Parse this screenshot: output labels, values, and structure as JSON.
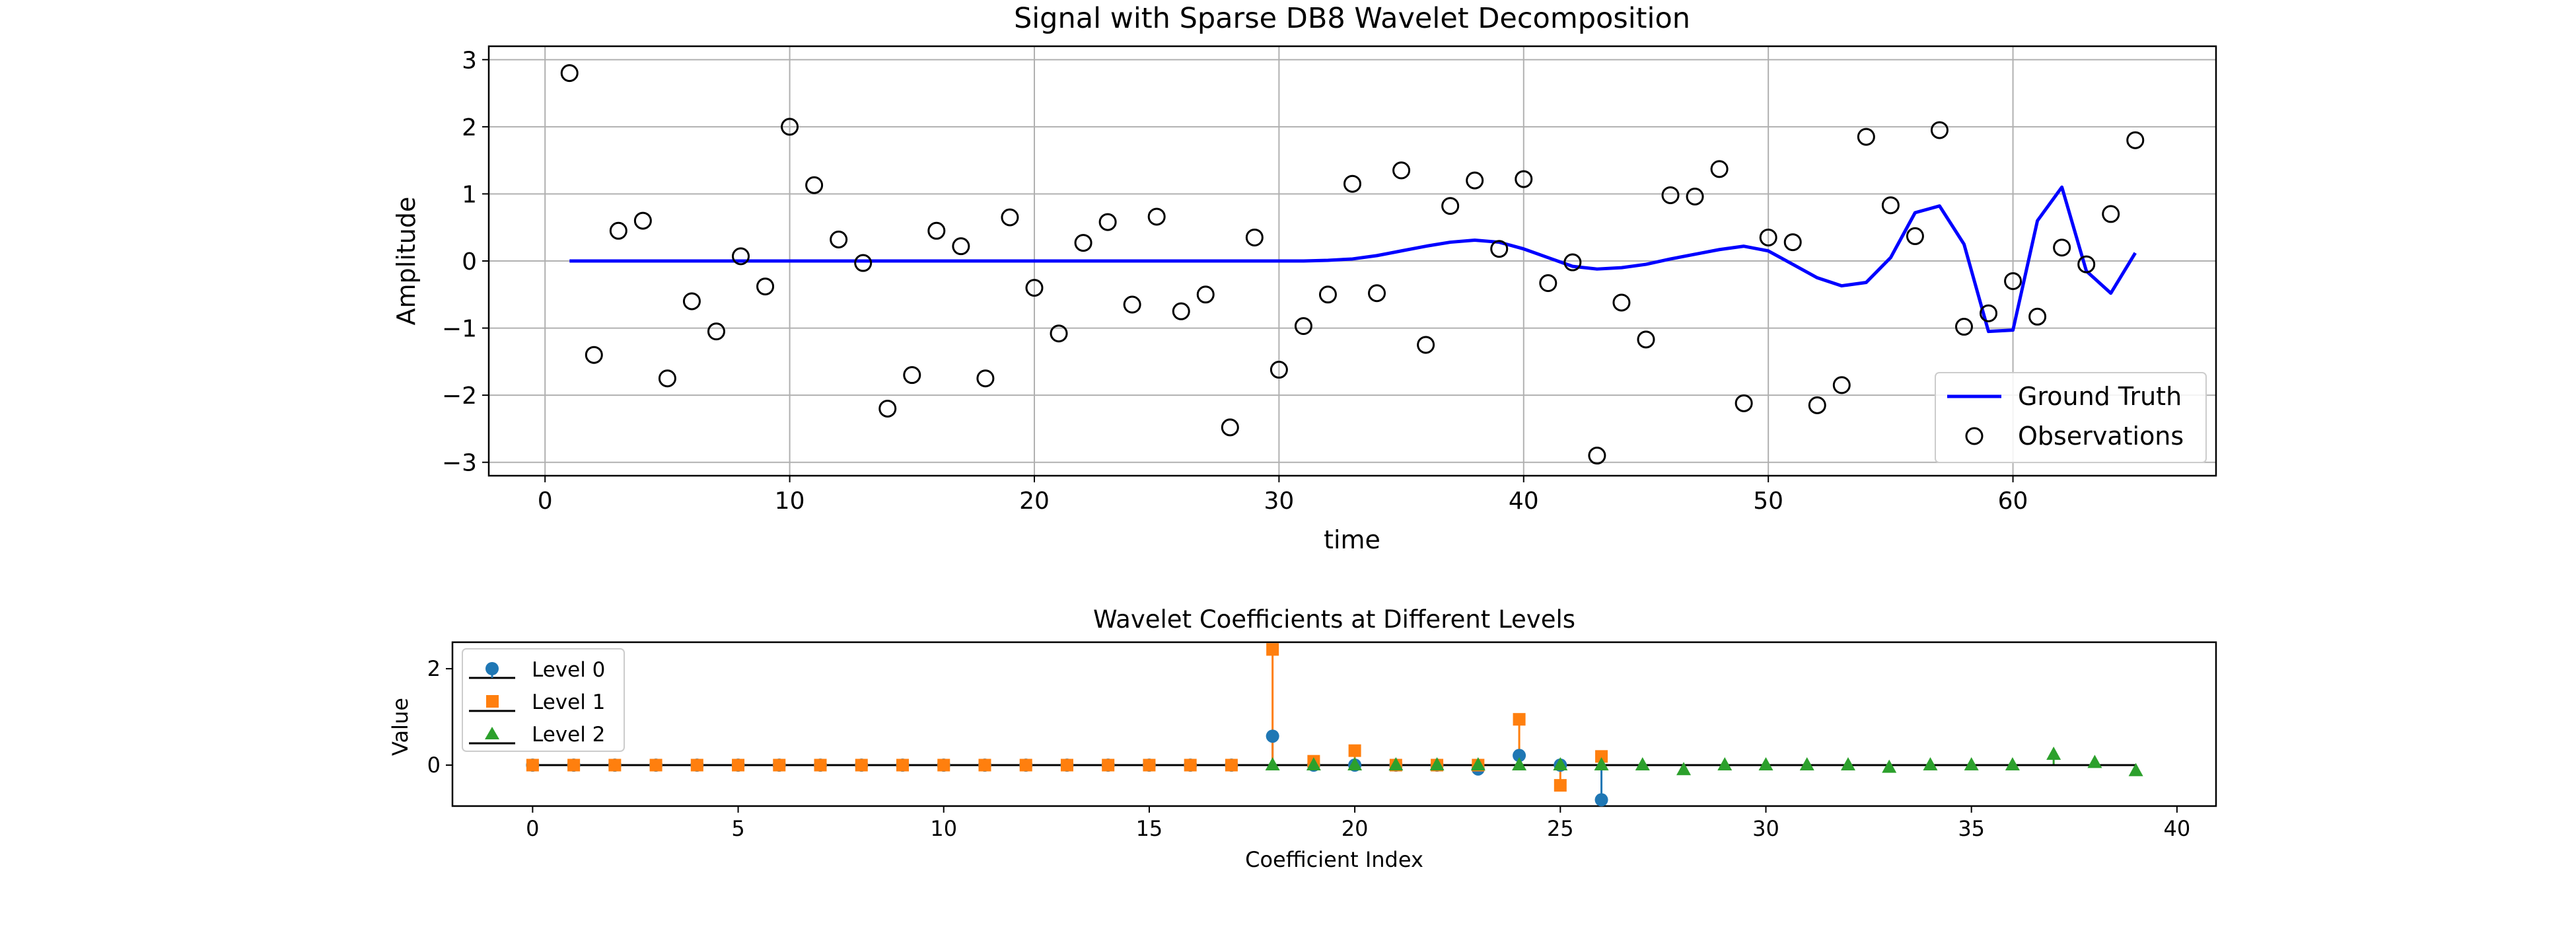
{
  "chart_data": [
    {
      "type": "line",
      "title": "Signal with Sparse DB8 Wavelet Decomposition",
      "xlabel": "time",
      "ylabel": "Amplitude",
      "xlim": [
        -2.3,
        68.3
      ],
      "ylim": [
        -3.2,
        3.2
      ],
      "xticks": [
        0,
        10,
        20,
        30,
        40,
        50,
        60
      ],
      "yticks": [
        -3,
        -2,
        -1,
        0,
        1,
        2,
        3
      ],
      "grid": true,
      "legend_position": "lower right",
      "colors": {
        "ground_truth": "#0000ff",
        "observations": "#000000"
      },
      "series": [
        {
          "name": "Ground Truth",
          "type": "line",
          "x": [
            1,
            2,
            3,
            4,
            5,
            6,
            7,
            8,
            9,
            10,
            11,
            12,
            13,
            14,
            15,
            16,
            17,
            18,
            19,
            20,
            21,
            22,
            23,
            24,
            25,
            26,
            27,
            28,
            29,
            30,
            31,
            32,
            33,
            34,
            35,
            36,
            37,
            38,
            39,
            40,
            41,
            42,
            43,
            44,
            45,
            46,
            47,
            48,
            49,
            50,
            51,
            52,
            53,
            54,
            55,
            56,
            57,
            58,
            59,
            60,
            61,
            62,
            63,
            64,
            65
          ],
          "y": [
            0,
            0,
            0,
            0,
            0,
            0,
            0,
            0,
            0,
            0,
            0,
            0,
            0,
            0,
            0,
            0,
            0,
            0,
            0,
            0,
            0,
            0,
            0,
            0,
            0,
            0,
            0,
            0,
            0,
            0,
            0,
            0.01,
            0.03,
            0.08,
            0.15,
            0.22,
            0.28,
            0.31,
            0.28,
            0.18,
            0.05,
            -0.08,
            -0.12,
            -0.1,
            -0.05,
            0.03,
            0.1,
            0.17,
            0.22,
            0.15,
            -0.05,
            -0.25,
            -0.37,
            -0.32,
            0.05,
            0.72,
            0.82,
            0.25,
            -1.05,
            -1.03,
            0.6,
            1.1,
            -0.15,
            -0.48,
            0.12
          ]
        },
        {
          "name": "Observations",
          "type": "scatter",
          "x": [
            1,
            2,
            3,
            4,
            5,
            6,
            7,
            8,
            9,
            10,
            11,
            12,
            13,
            14,
            15,
            16,
            17,
            18,
            19,
            20,
            21,
            22,
            23,
            24,
            25,
            26,
            27,
            28,
            29,
            30,
            31,
            32,
            33,
            34,
            35,
            36,
            37,
            38,
            39,
            40,
            41,
            42,
            43,
            44,
            45,
            46,
            47,
            48,
            49,
            50,
            51,
            52,
            53,
            54,
            55,
            56,
            57,
            58,
            59,
            60,
            61,
            62,
            63,
            64,
            65
          ],
          "y": [
            2.8,
            -1.4,
            0.45,
            0.6,
            -1.75,
            -0.6,
            -1.05,
            0.07,
            -0.38,
            2.0,
            1.13,
            0.32,
            -0.03,
            -2.2,
            -1.7,
            0.45,
            0.22,
            -1.75,
            0.65,
            -0.4,
            -1.08,
            0.27,
            0.58,
            -0.65,
            0.66,
            -0.75,
            -0.5,
            -2.48,
            0.35,
            -1.62,
            -0.97,
            -0.5,
            1.15,
            -0.48,
            1.35,
            -1.25,
            0.82,
            1.2,
            0.18,
            1.22,
            -0.33,
            -0.02,
            -2.9,
            -0.62,
            -1.17,
            0.98,
            0.96,
            1.37,
            -2.12,
            0.35,
            0.28,
            -2.15,
            -1.85,
            1.85,
            0.83,
            0.37,
            1.95,
            -0.98,
            -0.78,
            -0.3,
            -0.83,
            0.2,
            -0.05,
            0.7,
            1.8
          ]
        }
      ]
    },
    {
      "type": "stem",
      "title": "Wavelet Coefficients at Different Levels",
      "xlabel": "Coefficient Index",
      "ylabel": "Value",
      "xlim": [
        -1.95,
        40.95
      ],
      "ylim": [
        -0.85,
        2.55
      ],
      "xticks": [
        0,
        5,
        10,
        15,
        20,
        25,
        30,
        35,
        40
      ],
      "yticks": [
        0,
        2
      ],
      "grid": false,
      "legend_position": "upper left",
      "series": [
        {
          "name": "Level 0",
          "marker": "circle",
          "color": "#1f77b4",
          "x": [
            0,
            1,
            2,
            3,
            4,
            5,
            6,
            7,
            8,
            9,
            10,
            11,
            12,
            13,
            14,
            15,
            16,
            17,
            18,
            19,
            20,
            21,
            22,
            23,
            24,
            25,
            26
          ],
          "values": [
            0,
            0,
            0,
            0,
            0,
            0,
            0,
            0,
            0,
            0,
            0,
            0,
            0,
            0,
            0,
            0,
            0,
            0,
            0.6,
            0,
            0,
            0,
            0,
            -0.08,
            0.2,
            0,
            -0.72
          ]
        },
        {
          "name": "Level 1",
          "marker": "square",
          "color": "#ff7f0e",
          "x": [
            0,
            1,
            2,
            3,
            4,
            5,
            6,
            7,
            8,
            9,
            10,
            11,
            12,
            13,
            14,
            15,
            16,
            17,
            18,
            19,
            20,
            21,
            22,
            23,
            24,
            25,
            26
          ],
          "values": [
            0,
            0,
            0,
            0,
            0,
            0,
            0,
            0,
            0,
            0,
            0,
            0,
            0,
            0,
            0,
            0,
            0,
            0,
            2.4,
            0.08,
            0.3,
            0,
            0,
            0,
            0.95,
            -0.42,
            0.18
          ]
        },
        {
          "name": "Level 2",
          "marker": "triangle",
          "color": "#2ca02c",
          "x": [
            18,
            19,
            20,
            21,
            22,
            23,
            24,
            25,
            26,
            27,
            28,
            29,
            30,
            31,
            32,
            33,
            34,
            35,
            36,
            37,
            38,
            39
          ],
          "values": [
            0,
            0,
            0,
            0,
            0,
            0,
            0,
            0,
            0,
            0,
            -0.1,
            0,
            0,
            0,
            0,
            -0.05,
            0,
            0,
            0,
            0.22,
            0.05,
            -0.12
          ]
        }
      ]
    }
  ]
}
